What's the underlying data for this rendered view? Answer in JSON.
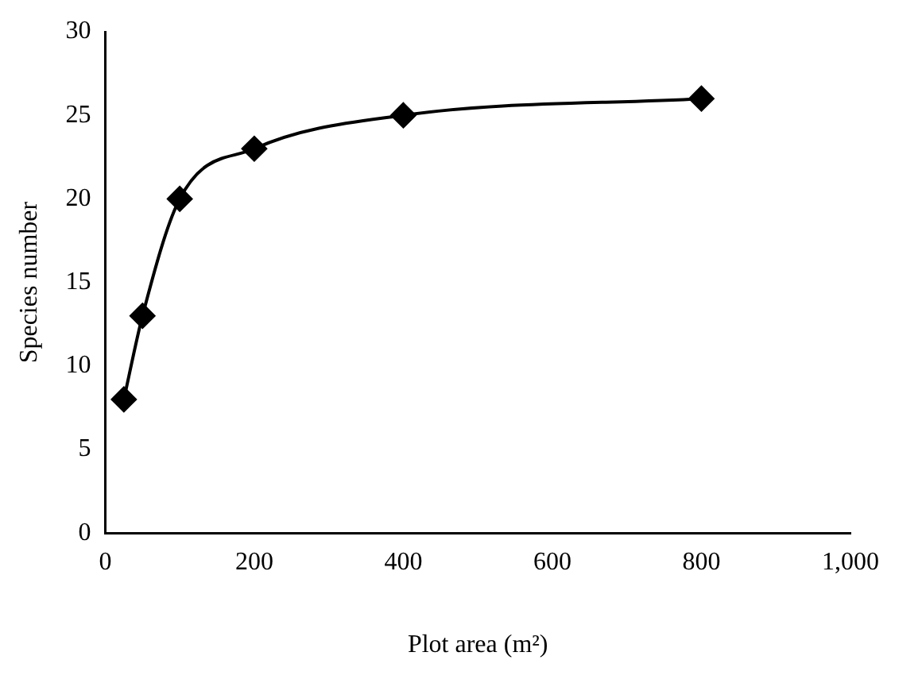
{
  "chart_data": {
    "type": "line",
    "xlabel": "Plot area (m²)",
    "ylabel": "Species number",
    "x": [
      25,
      50,
      100,
      200,
      400,
      800
    ],
    "series": [
      {
        "color": "#000000",
        "values": [
          8,
          13,
          20,
          23,
          25,
          26
        ]
      }
    ],
    "xlim": [
      0,
      1000
    ],
    "xticks": [
      0,
      200,
      400,
      600,
      800,
      {
        "value": 1000,
        "label": "1,000"
      }
    ],
    "ylim": [
      0,
      30
    ],
    "yticks": [
      0,
      5,
      10,
      15,
      20,
      25,
      30
    ],
    "grid": false,
    "legend": false,
    "marker": "diamond",
    "line_style": "solid"
  }
}
